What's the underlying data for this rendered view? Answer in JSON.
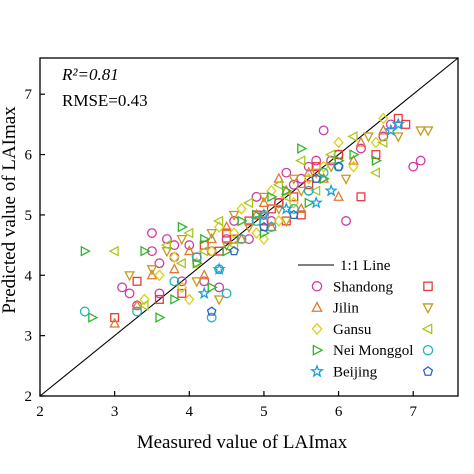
{
  "chart_data": {
    "type": "scatter",
    "xlabel": "Measured value of LAImax",
    "ylabel": "Predicted value of LAImax",
    "xlim": [
      2,
      7.6
    ],
    "ylim": [
      2,
      7.6
    ],
    "xticks": [
      "2",
      "3",
      "4",
      "5",
      "6",
      "7"
    ],
    "yticks": [
      "2",
      "3",
      "4",
      "5",
      "6",
      "7"
    ],
    "annotations": {
      "r2": "R²=0.81",
      "rmse": "RMSE=0.43"
    },
    "reference_line": {
      "label": "1:1 Line",
      "points": [
        [
          2,
          2
        ],
        [
          7.6,
          7.6
        ]
      ],
      "color": "#000000"
    },
    "legend_position": "bottom-right",
    "series": [
      {
        "name": "Shandong",
        "marker": "circle",
        "color": "#d03aa6",
        "points": [
          [
            3.1,
            3.8
          ],
          [
            3.2,
            3.7
          ],
          [
            3.5,
            4.7
          ],
          [
            3.5,
            4.4
          ],
          [
            3.6,
            4.2
          ],
          [
            3.7,
            4.6
          ],
          [
            3.8,
            4.3
          ],
          [
            3.8,
            4.5
          ],
          [
            3.9,
            3.9
          ],
          [
            4.0,
            4.5
          ],
          [
            4.2,
            3.9
          ],
          [
            4.3,
            4.4
          ],
          [
            4.5,
            4.6
          ],
          [
            4.6,
            4.9
          ],
          [
            4.8,
            4.6
          ],
          [
            5.0,
            5.0
          ],
          [
            5.2,
            5.2
          ],
          [
            5.3,
            5.7
          ],
          [
            5.4,
            5.5
          ],
          [
            5.5,
            5.6
          ],
          [
            5.6,
            5.8
          ],
          [
            5.7,
            5.9
          ],
          [
            5.8,
            6.4
          ],
          [
            5.9,
            5.9
          ],
          [
            6.0,
            6.0
          ],
          [
            6.1,
            4.9
          ],
          [
            6.6,
            6.3
          ],
          [
            6.7,
            6.5
          ],
          [
            7.0,
            5.8
          ],
          [
            7.1,
            5.9
          ],
          [
            3.3,
            3.5
          ],
          [
            3.6,
            3.7
          ],
          [
            4.1,
            4.3
          ],
          [
            4.4,
            3.8
          ],
          [
            4.9,
            5.3
          ],
          [
            5.1,
            4.9
          ],
          [
            5.6,
            5.4
          ],
          [
            6.3,
            6.1
          ]
        ]
      },
      {
        "name": "",
        "marker": "square",
        "color": "#e8393b",
        "points": [
          [
            3.0,
            3.3
          ],
          [
            3.3,
            3.9
          ],
          [
            3.6,
            3.6
          ],
          [
            3.9,
            3.7
          ],
          [
            4.1,
            4.3
          ],
          [
            4.2,
            4.5
          ],
          [
            4.4,
            4.4
          ],
          [
            4.5,
            4.7
          ],
          [
            4.8,
            4.9
          ],
          [
            4.9,
            5.0
          ],
          [
            5.0,
            4.9
          ],
          [
            5.1,
            5.1
          ],
          [
            5.2,
            5.2
          ],
          [
            5.3,
            4.9
          ],
          [
            5.4,
            5.3
          ],
          [
            5.6,
            5.5
          ],
          [
            5.7,
            5.8
          ],
          [
            6.0,
            6.0
          ],
          [
            6.3,
            5.3
          ],
          [
            6.5,
            6.0
          ],
          [
            6.8,
            6.6
          ],
          [
            6.9,
            6.5
          ],
          [
            4.6,
            4.6
          ],
          [
            5.5,
            5.0
          ]
        ]
      },
      {
        "name": "Jilin",
        "marker": "triangle-up",
        "color": "#e07b2c",
        "points": [
          [
            3.0,
            3.2
          ],
          [
            3.3,
            3.5
          ],
          [
            3.5,
            4.0
          ],
          [
            3.8,
            4.1
          ],
          [
            4.0,
            4.4
          ],
          [
            4.2,
            4.0
          ],
          [
            4.5,
            4.8
          ],
          [
            4.7,
            4.6
          ],
          [
            4.9,
            5.0
          ],
          [
            5.0,
            5.2
          ],
          [
            5.1,
            4.8
          ],
          [
            5.3,
            5.4
          ],
          [
            5.5,
            5.1
          ],
          [
            5.6,
            5.7
          ],
          [
            5.8,
            5.6
          ],
          [
            6.0,
            5.3
          ],
          [
            6.2,
            5.9
          ],
          [
            6.3,
            6.2
          ],
          [
            6.6,
            6.4
          ],
          [
            4.3,
            4.6
          ],
          [
            5.2,
            5.6
          ]
        ]
      },
      {
        "name": "",
        "marker": "triangle-down",
        "color": "#c89a16",
        "points": [
          [
            3.2,
            4.0
          ],
          [
            3.5,
            4.1
          ],
          [
            3.7,
            4.4
          ],
          [
            3.9,
            4.6
          ],
          [
            4.1,
            3.9
          ],
          [
            4.3,
            4.7
          ],
          [
            4.5,
            4.5
          ],
          [
            4.6,
            5.0
          ],
          [
            4.8,
            4.8
          ],
          [
            5.0,
            5.3
          ],
          [
            5.2,
            5.1
          ],
          [
            5.4,
            5.6
          ],
          [
            5.5,
            5.4
          ],
          [
            5.7,
            5.7
          ],
          [
            5.9,
            5.8
          ],
          [
            6.1,
            5.6
          ],
          [
            6.4,
            6.3
          ],
          [
            6.8,
            6.3
          ],
          [
            7.1,
            6.4
          ],
          [
            7.2,
            6.4
          ],
          [
            4.4,
            3.6
          ],
          [
            5.3,
            4.9
          ]
        ]
      },
      {
        "name": "Gansu",
        "marker": "diamond",
        "color": "#d8d21a",
        "points": [
          [
            3.4,
            3.6
          ],
          [
            3.6,
            4.0
          ],
          [
            3.8,
            4.3
          ],
          [
            4.0,
            3.6
          ],
          [
            4.1,
            4.2
          ],
          [
            4.3,
            4.4
          ],
          [
            4.4,
            4.8
          ],
          [
            4.6,
            4.7
          ],
          [
            4.7,
            5.1
          ],
          [
            4.9,
            4.7
          ],
          [
            5.1,
            5.4
          ],
          [
            5.2,
            4.9
          ],
          [
            5.4,
            5.2
          ],
          [
            5.6,
            5.6
          ],
          [
            5.8,
            5.8
          ],
          [
            6.0,
            6.2
          ],
          [
            6.2,
            5.8
          ],
          [
            6.5,
            6.2
          ],
          [
            6.6,
            6.6
          ],
          [
            3.9,
            3.8
          ],
          [
            5.0,
            4.6
          ]
        ]
      },
      {
        "name": "",
        "marker": "triangle-left",
        "color": "#a8c81e",
        "points": [
          [
            3.0,
            4.4
          ],
          [
            3.4,
            3.5
          ],
          [
            3.7,
            4.5
          ],
          [
            3.9,
            4.2
          ],
          [
            4.0,
            4.7
          ],
          [
            4.2,
            4.4
          ],
          [
            4.4,
            4.9
          ],
          [
            4.6,
            4.5
          ],
          [
            4.8,
            5.2
          ],
          [
            5.0,
            5.0
          ],
          [
            5.2,
            5.5
          ],
          [
            5.3,
            5.3
          ],
          [
            5.5,
            5.9
          ],
          [
            5.7,
            5.4
          ],
          [
            5.9,
            6.0
          ],
          [
            6.2,
            6.3
          ],
          [
            6.5,
            5.7
          ],
          [
            6.6,
            6.2
          ]
        ]
      },
      {
        "name": "Nei Monggol",
        "marker": "triangle-right",
        "color": "#2fb52a",
        "points": [
          [
            2.6,
            4.4
          ],
          [
            2.7,
            3.3
          ],
          [
            3.4,
            4.4
          ],
          [
            3.6,
            3.3
          ],
          [
            3.8,
            3.6
          ],
          [
            3.9,
            4.8
          ],
          [
            4.1,
            4.2
          ],
          [
            4.3,
            3.8
          ],
          [
            4.5,
            4.4
          ],
          [
            4.7,
            4.9
          ],
          [
            4.9,
            5.0
          ],
          [
            5.1,
            5.3
          ],
          [
            5.3,
            5.4
          ],
          [
            5.5,
            6.1
          ],
          [
            5.6,
            5.2
          ],
          [
            5.8,
            5.6
          ],
          [
            6.0,
            5.9
          ],
          [
            6.2,
            6.0
          ],
          [
            6.5,
            5.9
          ],
          [
            4.2,
            4.6
          ],
          [
            5.0,
            4.7
          ]
        ]
      },
      {
        "name": "",
        "marker": "circle",
        "color": "#1fb8b0",
        "points": [
          [
            2.6,
            3.4
          ],
          [
            3.3,
            3.4
          ],
          [
            3.8,
            3.9
          ],
          [
            4.1,
            4.3
          ],
          [
            4.3,
            3.3
          ],
          [
            4.5,
            3.7
          ],
          [
            4.7,
            4.6
          ],
          [
            4.9,
            4.9
          ],
          [
            5.1,
            4.8
          ],
          [
            5.4,
            5.1
          ],
          [
            5.6,
            5.4
          ],
          [
            5.8,
            5.7
          ],
          [
            6.0,
            5.8
          ],
          [
            4.4,
            4.1
          ]
        ]
      },
      {
        "name": "Beijing",
        "marker": "star",
        "color": "#1aa0dc",
        "points": [
          [
            4.2,
            3.7
          ],
          [
            4.4,
            4.1
          ],
          [
            5.0,
            5.0
          ],
          [
            5.3,
            5.1
          ],
          [
            5.7,
            5.2
          ],
          [
            5.9,
            5.4
          ],
          [
            6.7,
            6.4
          ],
          [
            6.8,
            6.5
          ]
        ]
      },
      {
        "name": "",
        "marker": "pentagon",
        "color": "#2c62c8",
        "points": [
          [
            4.3,
            3.4
          ],
          [
            4.6,
            4.4
          ],
          [
            5.0,
            4.8
          ],
          [
            5.4,
            5.0
          ],
          [
            5.7,
            5.6
          ],
          [
            6.0,
            5.8
          ]
        ]
      }
    ]
  }
}
